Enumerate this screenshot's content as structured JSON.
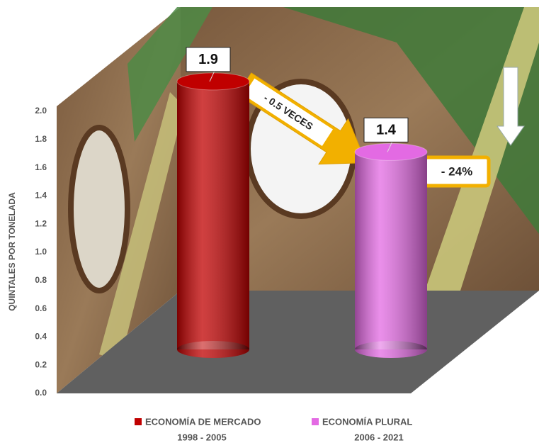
{
  "chart_data": {
    "type": "cylinder",
    "y_label": "QUINTALES POR TONELADA",
    "ylim": [
      0,
      2.0
    ],
    "yticks": [
      {
        "value": 0,
        "label": "0.0"
      },
      0.2,
      0.4,
      0.6,
      0.8,
      {
        "value": 1,
        "label": "1.0"
      },
      1.2,
      1.4,
      1.6,
      1.8,
      {
        "value": 2,
        "label": "2.0"
      }
    ],
    "series": [
      {
        "name": "ECONOMÍA DE MERCADO",
        "years": "1998 - 2005",
        "color": "#c00000",
        "values": [
          1.9
        ]
      },
      {
        "name": "ECONOMÍA PLURAL",
        "years": "2006 - 2021",
        "color": "#e36ae3",
        "values": [
          1.4
        ]
      }
    ],
    "annotations": [
      "- 0.5 VECES",
      "- 24%"
    ]
  }
}
